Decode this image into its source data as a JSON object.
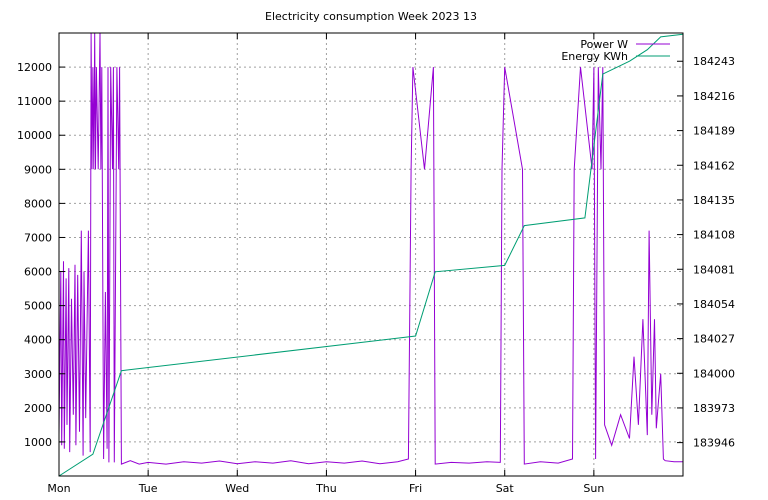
{
  "chart_data": {
    "type": "line",
    "title": "Electricity consumption Week 2023 13",
    "x_categories": [
      "Mon",
      "Tue",
      "Wed",
      "Thu",
      "Fri",
      "Sat",
      "Sun"
    ],
    "x_range_days": [
      0,
      7
    ],
    "y_left": {
      "label": "",
      "range": [
        0,
        13000
      ],
      "ticks": [
        1000,
        2000,
        3000,
        4000,
        5000,
        6000,
        7000,
        8000,
        9000,
        10000,
        11000,
        12000
      ]
    },
    "y_right": {
      "label": "",
      "range": [
        183920,
        184265
      ],
      "ticks": [
        183946,
        183973,
        184000,
        184027,
        184054,
        184081,
        184108,
        184135,
        184162,
        184189,
        184216,
        184243
      ]
    },
    "grid": true,
    "legend": {
      "position": "top-right"
    },
    "series": [
      {
        "name": "Power W",
        "axis": "left",
        "color": "#9400d3",
        "points": [
          [
            0.0,
            1200
          ],
          [
            0.02,
            6000
          ],
          [
            0.03,
            900
          ],
          [
            0.05,
            6300
          ],
          [
            0.06,
            800
          ],
          [
            0.08,
            5800
          ],
          [
            0.09,
            1500
          ],
          [
            0.11,
            6100
          ],
          [
            0.12,
            700
          ],
          [
            0.14,
            5200
          ],
          [
            0.16,
            1800
          ],
          [
            0.18,
            6200
          ],
          [
            0.19,
            900
          ],
          [
            0.21,
            5900
          ],
          [
            0.23,
            1300
          ],
          [
            0.25,
            7200
          ],
          [
            0.27,
            600
          ],
          [
            0.28,
            6000
          ],
          [
            0.3,
            1700
          ],
          [
            0.33,
            7200
          ],
          [
            0.35,
            700
          ],
          [
            0.36,
            13000
          ],
          [
            0.37,
            9000
          ],
          [
            0.38,
            12000
          ],
          [
            0.39,
            9000
          ],
          [
            0.4,
            13000
          ],
          [
            0.41,
            9000
          ],
          [
            0.42,
            12000
          ],
          [
            0.44,
            9000
          ],
          [
            0.46,
            13000
          ],
          [
            0.47,
            9000
          ],
          [
            0.48,
            12000
          ],
          [
            0.5,
            500
          ],
          [
            0.52,
            5400
          ],
          [
            0.54,
            800
          ],
          [
            0.55,
            12000
          ],
          [
            0.56,
            400
          ],
          [
            0.58,
            12000
          ],
          [
            0.6,
            9000
          ],
          [
            0.61,
            12000
          ],
          [
            0.62,
            400
          ],
          [
            0.65,
            12000
          ],
          [
            0.67,
            9000
          ],
          [
            0.68,
            12000
          ],
          [
            0.7,
            350
          ],
          [
            0.8,
            450
          ],
          [
            0.9,
            350
          ],
          [
            1.0,
            400
          ],
          [
            1.2,
            350
          ],
          [
            1.4,
            420
          ],
          [
            1.6,
            380
          ],
          [
            1.8,
            440
          ],
          [
            2.0,
            360
          ],
          [
            2.2,
            420
          ],
          [
            2.4,
            380
          ],
          [
            2.6,
            450
          ],
          [
            2.8,
            360
          ],
          [
            3.0,
            420
          ],
          [
            3.2,
            380
          ],
          [
            3.4,
            440
          ],
          [
            3.6,
            360
          ],
          [
            3.8,
            420
          ],
          [
            3.92,
            500
          ],
          [
            3.95,
            9000
          ],
          [
            3.97,
            12000
          ],
          [
            4.1,
            9000
          ],
          [
            4.2,
            12000
          ],
          [
            4.22,
            350
          ],
          [
            4.4,
            400
          ],
          [
            4.6,
            380
          ],
          [
            4.8,
            420
          ],
          [
            4.95,
            400
          ],
          [
            4.97,
            9000
          ],
          [
            5.0,
            12000
          ],
          [
            5.2,
            9000
          ],
          [
            5.22,
            350
          ],
          [
            5.4,
            420
          ],
          [
            5.6,
            380
          ],
          [
            5.76,
            500
          ],
          [
            5.78,
            9000
          ],
          [
            5.85,
            12000
          ],
          [
            5.98,
            9000
          ],
          [
            6.0,
            12000
          ],
          [
            6.02,
            500
          ],
          [
            6.05,
            12000
          ],
          [
            6.08,
            9000
          ],
          [
            6.1,
            12000
          ],
          [
            6.12,
            1500
          ],
          [
            6.2,
            900
          ],
          [
            6.3,
            1800
          ],
          [
            6.4,
            1100
          ],
          [
            6.45,
            3500
          ],
          [
            6.5,
            1500
          ],
          [
            6.55,
            4600
          ],
          [
            6.6,
            1200
          ],
          [
            6.62,
            7200
          ],
          [
            6.65,
            1800
          ],
          [
            6.68,
            4600
          ],
          [
            6.7,
            1400
          ],
          [
            6.75,
            3000
          ],
          [
            6.78,
            500
          ],
          [
            6.8,
            450
          ],
          [
            6.9,
            420
          ],
          [
            7.0,
            420
          ]
        ]
      },
      {
        "name": "Energy KWh",
        "axis": "right",
        "color": "#009e73",
        "points": [
          [
            0.0,
            183920
          ],
          [
            0.38,
            183937
          ],
          [
            0.7,
            184002
          ],
          [
            4.0,
            184029
          ],
          [
            4.22,
            184079
          ],
          [
            5.0,
            184084
          ],
          [
            5.22,
            184115
          ],
          [
            5.9,
            184121
          ],
          [
            6.1,
            184233
          ],
          [
            6.4,
            184243
          ],
          [
            6.6,
            184252
          ],
          [
            6.75,
            184262
          ],
          [
            7.0,
            184264
          ]
        ]
      }
    ]
  }
}
